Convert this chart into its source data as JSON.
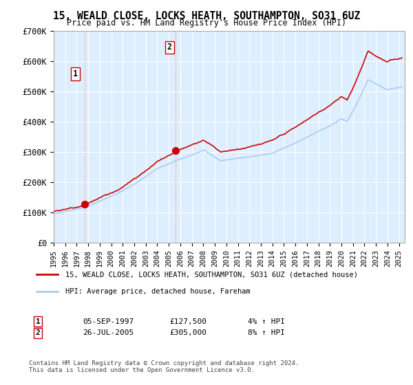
{
  "title": "15, WEALD CLOSE, LOCKS HEATH, SOUTHAMPTON, SO31 6UZ",
  "subtitle": "Price paid vs. HM Land Registry's House Price Index (HPI)",
  "ylim": [
    0,
    700000
  ],
  "yticks": [
    0,
    100000,
    200000,
    300000,
    400000,
    500000,
    600000,
    700000
  ],
  "ytick_labels": [
    "£0",
    "£100K",
    "£200K",
    "£300K",
    "£400K",
    "£500K",
    "£600K",
    "£700K"
  ],
  "xlim_start": 1995.0,
  "xlim_end": 2025.5,
  "xtick_years": [
    1995,
    1996,
    1997,
    1998,
    1999,
    2000,
    2001,
    2002,
    2003,
    2004,
    2005,
    2006,
    2007,
    2008,
    2009,
    2010,
    2011,
    2012,
    2013,
    2014,
    2015,
    2016,
    2017,
    2018,
    2019,
    2020,
    2021,
    2022,
    2023,
    2024,
    2025
  ],
  "background_color": "#ffffff",
  "plot_bg_color": "#ddeeff",
  "grid_color": "#ffffff",
  "hpi_color": "#aaccee",
  "price_color": "#cc0000",
  "sale1_x": 1997.68,
  "sale1_y": 127500,
  "sale1_label": "1",
  "sale2_x": 2005.56,
  "sale2_y": 305000,
  "sale2_label": "2",
  "legend_line1": "15, WEALD CLOSE, LOCKS HEATH, SOUTHAMPTON, SO31 6UZ (detached house)",
  "legend_line2": "HPI: Average price, detached house, Fareham",
  "note1_label": "1",
  "note1_date": "05-SEP-1997",
  "note1_price": "£127,500",
  "note1_hpi": "4% ↑ HPI",
  "note2_label": "2",
  "note2_date": "26-JUL-2005",
  "note2_price": "£305,000",
  "note2_hpi": "8% ↑ HPI",
  "copyright": "Contains HM Land Registry data © Crown copyright and database right 2024.\nThis data is licensed under the Open Government Licence v3.0."
}
